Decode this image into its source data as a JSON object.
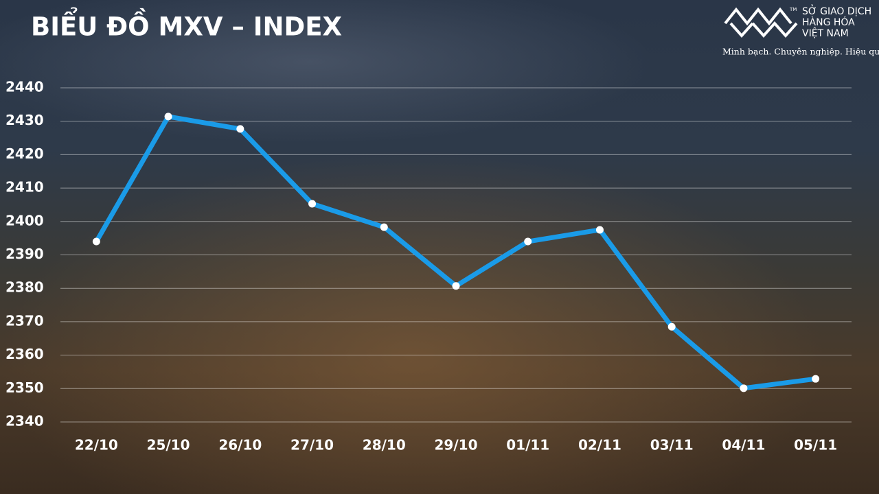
{
  "chart_data": {
    "type": "line",
    "title": "BIỂU ĐỒ MXV – INDEX",
    "categories": [
      "22/10",
      "25/10",
      "26/10",
      "27/10",
      "28/10",
      "29/10",
      "01/11",
      "02/11",
      "03/11",
      "04/11",
      "05/11"
    ],
    "series": [
      {
        "name": "MXV-Index",
        "color": "#1a9be8",
        "values": [
          2394,
          2431.4,
          2427.7,
          2405.3,
          2398.3,
          2380.7,
          2394,
          2397.5,
          2368.5,
          2350.1,
          2352.9
        ]
      }
    ],
    "ylim": [
      2340,
      2440
    ],
    "yticks": [
      2340,
      2350,
      2360,
      2370,
      2380,
      2390,
      2400,
      2410,
      2420,
      2430,
      2440
    ],
    "grid": true
  },
  "brand": {
    "trademark": "TM",
    "lines": [
      "SỞ GIAO DỊCH",
      "HÀNG HÓA",
      "VIỆT NAM"
    ],
    "slogan": "Minh bạch. Chuyên nghiệp. Hiệu quả"
  }
}
